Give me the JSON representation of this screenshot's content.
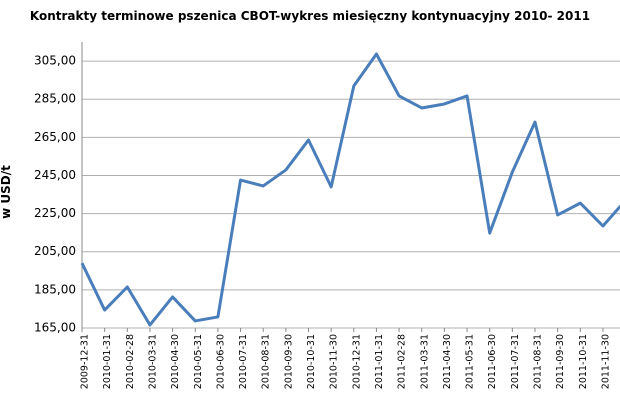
{
  "chart_data": {
    "type": "line",
    "title": "Kontrakty terminowe pszenica CBOT-wykres miesięczny kontynuacyjny 2010- 2011",
    "y_label": "w USD/t",
    "categories": [
      "2009-12-31",
      "2010-01-31",
      "2010-02-28",
      "2010-03-31",
      "2010-04-30",
      "2010-05-31",
      "2010-06-30",
      "2010-07-31",
      "2010-08-31",
      "2010-09-30",
      "2010-10-31",
      "2010-11-30",
      "2010-12-31",
      "2011-01-31",
      "2011-02-28",
      "2011-03-31",
      "2011-04-30",
      "2011-05-31",
      "2011-06-30",
      "2011-07-31",
      "2011-08-31",
      "2011-09-30",
      "2011-10-31",
      "2011-11-30",
      null
    ],
    "series": [
      {
        "name": null,
        "color": "#4a7ebb",
        "values": [
          199,
          174.4,
          186.5,
          166.6,
          181.3,
          168.7,
          170.8,
          242.6,
          239.5,
          247.9,
          263.6,
          239,
          291.9,
          308.7,
          286.7,
          280.4,
          282.5,
          286.7,
          214.8,
          246.8,
          273,
          224.3,
          230.5,
          218.5,
          232
        ]
      }
    ],
    "ylim": [
      165,
      315
    ],
    "yticks": [
      {
        "value": 165,
        "label": "165,00"
      },
      {
        "value": 185,
        "label": "185,00"
      },
      {
        "value": 205,
        "label": "205,00"
      },
      {
        "value": 225,
        "label": "225,00"
      },
      {
        "value": 245,
        "label": "245,00"
      },
      {
        "value": 265,
        "label": "265,00"
      },
      {
        "value": 285,
        "label": "285,00"
      },
      {
        "value": 305,
        "label": "305,00"
      }
    ],
    "grid": true
  }
}
